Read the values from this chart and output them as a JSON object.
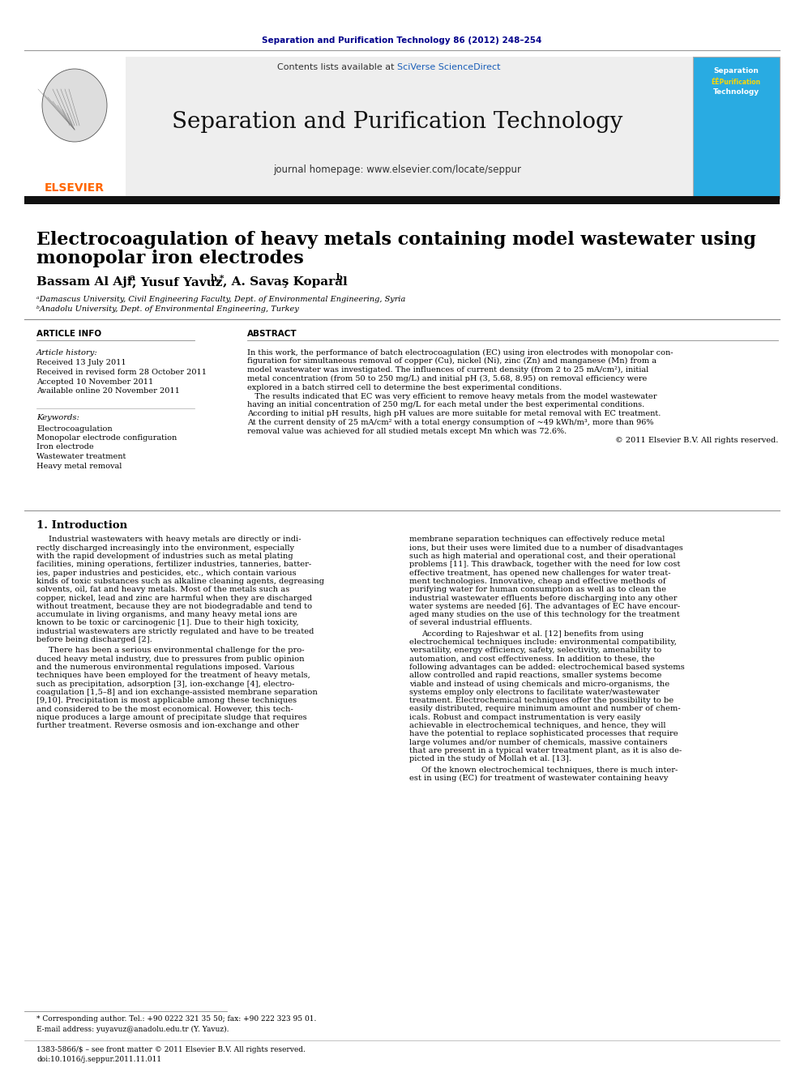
{
  "journal_ref": "Separation and Purification Technology 86 (2012) 248–254",
  "contents_line_plain": "Contents lists available at ",
  "contents_line_link": "SciVerse ScienceDirect",
  "journal_title": "Separation and Purification Technology",
  "journal_homepage": "journal homepage: www.elsevier.com/locate/seppur",
  "elsevier_text": "ELSEVIER",
  "paper_title_line1": "Electrocoagulation of heavy metals containing model wastewater using",
  "paper_title_line2": "monopolar iron electrodes",
  "authors_plain": "Bassam Al Aji ",
  "authors_sup_a": "a",
  "authors_mid": ", Yusuf Yavuz ",
  "authors_sup_b": "b,",
  "authors_star": "*",
  "authors_end": ", A. Savaş Koparal ",
  "authors_sup_b2": "b",
  "affil_a": "ᵃDamascus University, Civil Engineering Faculty, Dept. of Environmental Engineering, Syria",
  "affil_b": "ᵇAnadolu University, Dept. of Environmental Engineering, Turkey",
  "section_article_info": "ARTICLE INFO",
  "section_abstract": "ABSTRACT",
  "article_history_label": "Article history:",
  "received": "Received 13 July 2011",
  "revised": "Received in revised form 28 October 2011",
  "accepted": "Accepted 10 November 2011",
  "available": "Available online 20 November 2011",
  "keywords_label": "Keywords:",
  "keywords": [
    "Electrocoagulation",
    "Monopolar electrode configuration",
    "Iron electrode",
    "Wastewater treatment",
    "Heavy metal removal"
  ],
  "section_intro": "1. Introduction",
  "footnote_star": "* Corresponding author. Tel.: +90 0222 321 35 50; fax: +90 222 323 95 01.",
  "footnote_email": "E-mail address: yuyavuz@anadolu.edu.tr (Y. Yavuz).",
  "footer_issn": "1383-5866/$ – see front matter © 2011 Elsevier B.V. All rights reserved.",
  "footer_doi": "doi:10.1016/j.seppur.2011.11.011",
  "abstract_lines": [
    "In this work, the performance of batch electrocoagulation (EC) using iron electrodes with monopolar con-",
    "figuration for simultaneous removal of copper (Cu), nickel (Ni), zinc (Zn) and manganese (Mn) from a",
    "model wastewater was investigated. The influences of current density (from 2 to 25 mA/cm²), initial",
    "metal concentration (from 50 to 250 mg/L) and initial pH (3, 5.68, 8.95) on removal efficiency were",
    "explored in a batch stirred cell to determine the best experimental conditions.",
    "   The results indicated that EC was very efficient to remove heavy metals from the model wastewater",
    "having an initial concentration of 250 mg/L for each metal under the best experimental conditions.",
    "According to initial pH results, high pH values are more suitable for metal removal with EC treatment.",
    "At the current density of 25 mA/cm² with a total energy consumption of ~49 kWh/m³, more than 96%",
    "removal value was achieved for all studied metals except Mn which was 72.6%.",
    "© 2011 Elsevier B.V. All rights reserved."
  ],
  "col1_p1_lines": [
    "Industrial wastewaters with heavy metals are directly or indi-",
    "rectly discharged increasingly into the environment, especially",
    "with the rapid development of industries such as metal plating",
    "facilities, mining operations, fertilizer industries, tanneries, batter-",
    "ies, paper industries and pesticides, etc., which contain various",
    "kinds of toxic substances such as alkaline cleaning agents, degreasing",
    "solvents, oil, fat and heavy metals. Most of the metals such as",
    "copper, nickel, lead and zinc are harmful when they are discharged",
    "without treatment, because they are not biodegradable and tend to",
    "accumulate in living organisms, and many heavy metal ions are",
    "known to be toxic or carcinogenic [1]. Due to their high toxicity,",
    "industrial wastewaters are strictly regulated and have to be treated",
    "before being discharged [2]."
  ],
  "col1_p2_lines": [
    "There has been a serious environmental challenge for the pro-",
    "duced heavy metal industry, due to pressures from public opinion",
    "and the numerous environmental regulations imposed. Various",
    "techniques have been employed for the treatment of heavy metals,",
    "such as precipitation, adsorption [3], ion-exchange [4], electro-",
    "coagulation [1,5–8] and ion exchange-assisted membrane separation",
    "[9,10]. Precipitation is most applicable among these techniques",
    "and considered to be the most economical. However, this tech-",
    "nique produces a large amount of precipitate sludge that requires",
    "further treatment. Reverse osmosis and ion-exchange and other"
  ],
  "col2_p1_lines": [
    "membrane separation techniques can effectively reduce metal",
    "ions, but their uses were limited due to a number of disadvantages",
    "such as high material and operational cost, and their operational",
    "problems [11]. This drawback, together with the need for low cost",
    "effective treatment, has opened new challenges for water treat-",
    "ment technologies. Innovative, cheap and effective methods of",
    "purifying water for human consumption as well as to clean the",
    "industrial wastewater effluents before discharging into any other",
    "water systems are needed [6]. The advantages of EC have encour-",
    "aged many studies on the use of this technology for the treatment",
    "of several industrial effluents."
  ],
  "col2_p2_lines": [
    "According to Rajeshwar et al. [12] benefits from using",
    "electrochemical techniques include: environmental compatibility,",
    "versatility, energy efficiency, safety, selectivity, amenability to",
    "automation, and cost effectiveness. In addition to these, the",
    "following advantages can be added: electrochemical based systems",
    "allow controlled and rapid reactions, smaller systems become",
    "viable and instead of using chemicals and micro-organisms, the",
    "systems employ only electrons to facilitate water/wastewater",
    "treatment. Electrochemical techniques offer the possibility to be",
    "easily distributed, require minimum amount and number of chem-",
    "icals. Robust and compact instrumentation is very easily",
    "achievable in electrochemical techniques, and hence, they will",
    "have the potential to replace sophisticated processes that require",
    "large volumes and/or number of chemicals, massive containers",
    "that are present in a typical water treatment plant, as it is also de-",
    "picted in the study of Mollah et al. [13]."
  ],
  "col2_p3_lines": [
    "Of the known electrochemical techniques, there is much inter-",
    "est in using (EC) for treatment of wastewater containing heavy"
  ],
  "bg_color": "#ffffff",
  "gray_bg": "#eeeeee",
  "dark_bar": "#111111",
  "journal_ref_color": "#00008B",
  "elsevier_orange": "#FF6600",
  "sciverse_color": "#1a5eb8",
  "cover_cyan": "#29ABE2",
  "cover_yellow": "#FFD700"
}
